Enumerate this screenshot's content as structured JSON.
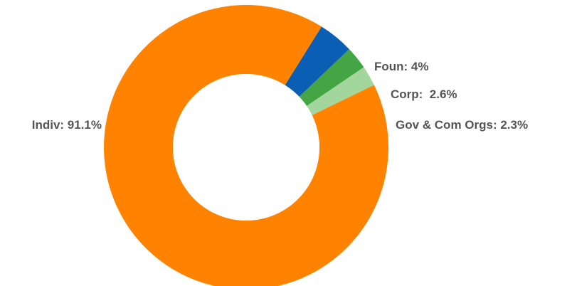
{
  "chart_data": {
    "type": "pie",
    "donut": true,
    "title": "",
    "legend": "none",
    "slices": [
      {
        "label": "Foun",
        "value": 4,
        "display": "Foun: 4%",
        "color": "#0a5fb4"
      },
      {
        "label": "Corp",
        "value": 2.6,
        "display": "Corp:  2.6%",
        "color": "#44a544"
      },
      {
        "label": "Gov & Com Orgs",
        "value": 2.3,
        "display": "Gov & Com Orgs: 2.3%",
        "color": "#a3d69d"
      },
      {
        "label": "Indiv",
        "value": 91.1,
        "display": "Indiv: 91.1%",
        "color": "#ff8200"
      }
    ]
  }
}
